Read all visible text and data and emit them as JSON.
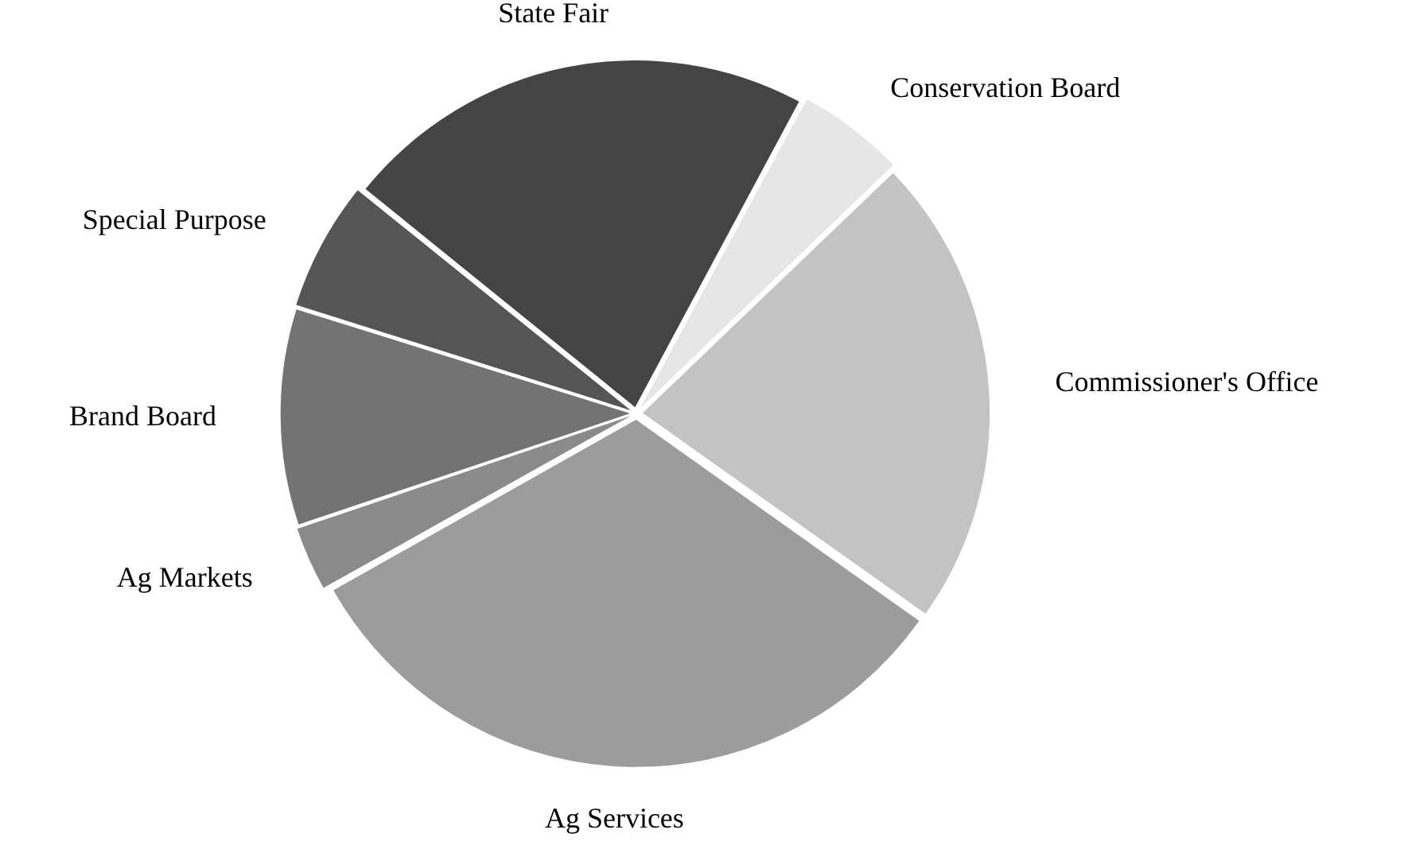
{
  "chart_data": {
    "type": "pie",
    "categories": [
      "State Fair",
      "Conservation Board",
      "Commissioner's Office",
      "Ag Services",
      "Ag Markets",
      "Brand Board",
      "Special Purpose"
    ],
    "values": [
      22,
      5,
      22,
      32,
      3,
      10,
      6
    ],
    "colors": [
      "#444444",
      "#e6e6e6",
      "#c3c3c3",
      "#9c9c9c",
      "#8a8a8a",
      "#737373",
      "#555555"
    ],
    "legend": false
  }
}
